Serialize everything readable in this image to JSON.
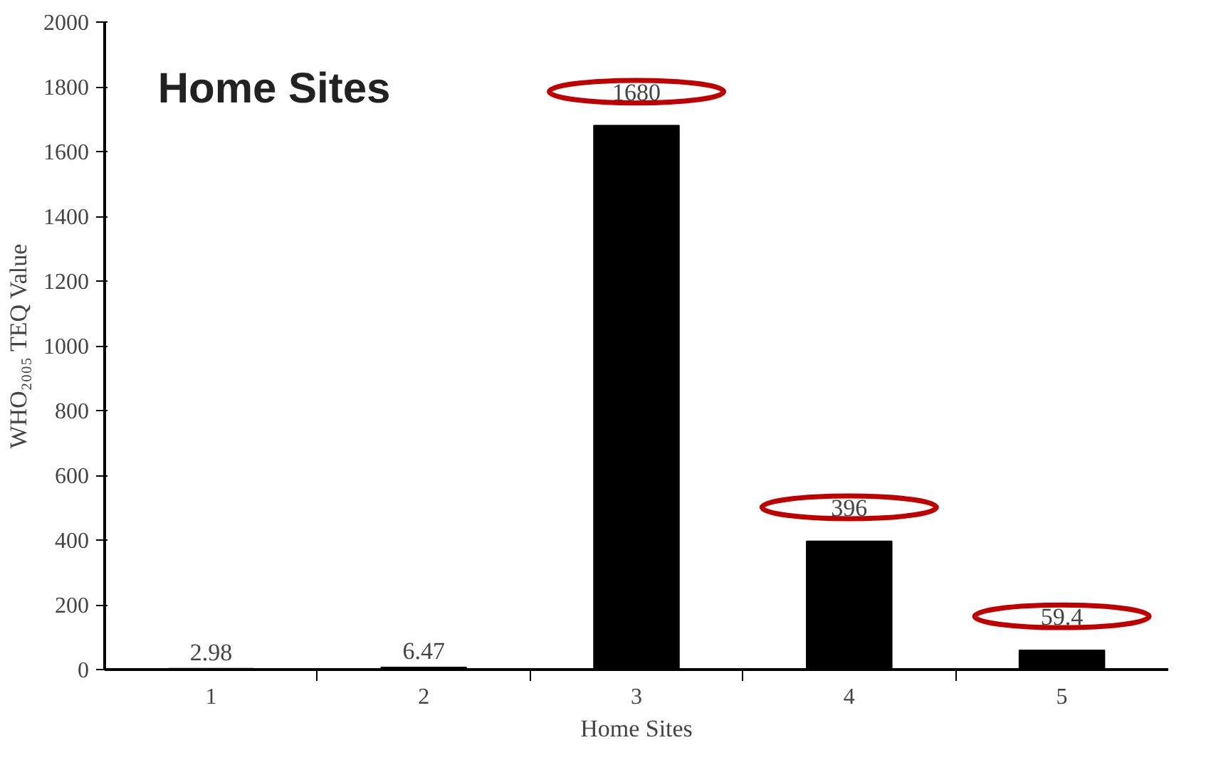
{
  "chart_data": {
    "type": "bar",
    "title": "Home Sites",
    "xlabel": "Home Sites",
    "ylabel": "WHO₂₀₀₅ TEQ Value",
    "categories": [
      "1",
      "2",
      "3",
      "4",
      "5"
    ],
    "values": [
      2.98,
      6.47,
      1680,
      396,
      59.4
    ],
    "value_labels": [
      "2.98",
      "6.47",
      null,
      null,
      null
    ],
    "annotations": [
      {
        "text": "1680",
        "x": "3",
        "y": 1680
      },
      {
        "text": "396",
        "x": "4",
        "y": 396
      },
      {
        "text": "59.4",
        "x": "5",
        "y": 59.4
      }
    ],
    "color": "#000000",
    "ylim": [
      0,
      2000
    ],
    "yticks": [
      0,
      200,
      400,
      600,
      800,
      1000,
      1200,
      1400,
      1600,
      1800,
      2000
    ],
    "grid": false
  }
}
